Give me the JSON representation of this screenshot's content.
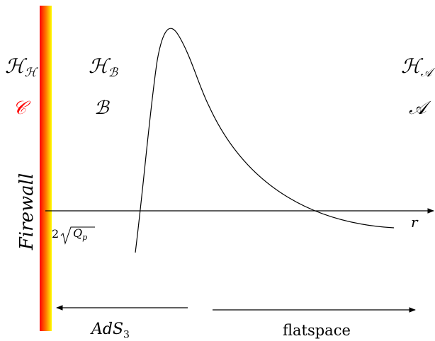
{
  "labels": {
    "hilbert_h": "ℋ",
    "hilbert_h_sub": "ℋ",
    "hilbert_b": "ℋ",
    "hilbert_b_sub": "ℬ",
    "hilbert_a": "ℋ",
    "hilbert_a_sub": "𝒜",
    "region_c": "𝒞",
    "region_b": "ℬ",
    "region_a": "𝒜",
    "firewall": "Firewall",
    "horizon_coefficient": "2",
    "horizon_radicand": "Q",
    "horizon_radicand_sub": "p",
    "axis_r": "r",
    "ads_label": "AdS",
    "ads_sub": "3",
    "flatspace_label": "flatspace"
  },
  "colors": {
    "region_c": "#ff0000",
    "firewall_gradient": [
      "#ff0000",
      "#ff8000",
      "#ffff00"
    ],
    "ink": "#000000"
  }
}
